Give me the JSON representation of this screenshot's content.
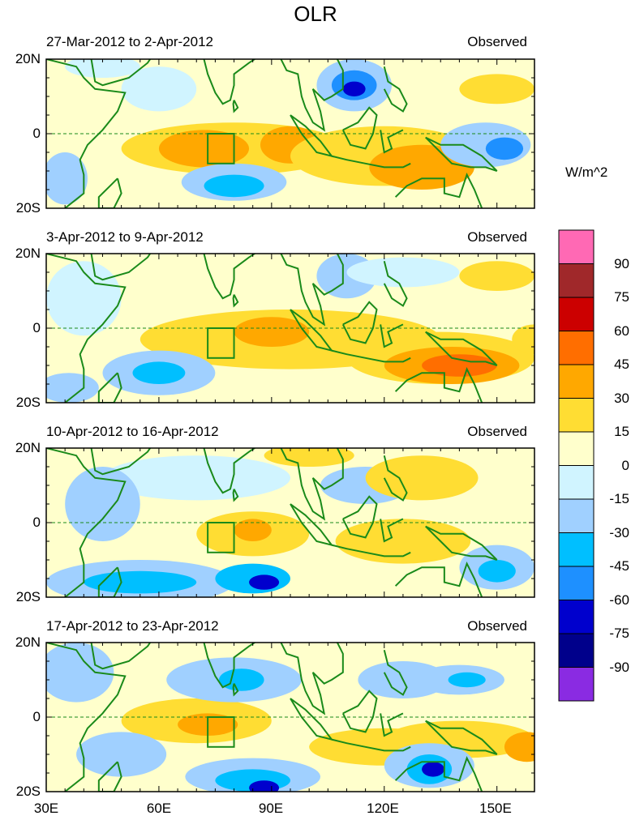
{
  "title": "OLR",
  "panels": [
    {
      "period": "27-Mar-2012 to 2-Apr-2012",
      "label": "Observed"
    },
    {
      "period": "3-Apr-2012 to 9-Apr-2012",
      "label": "Observed"
    },
    {
      "period": "10-Apr-2012 to 16-Apr-2012",
      "label": "Observed"
    },
    {
      "period": "17-Apr-2012 to 23-Apr-2012",
      "label": "Observed"
    }
  ],
  "y_ticks": [
    "20N",
    "0",
    "20S"
  ],
  "x_ticks": [
    "30E",
    "60E",
    "90E",
    "120E",
    "150E"
  ],
  "colorbar": {
    "units": "W/m^2",
    "labels": [
      "90",
      "75",
      "60",
      "45",
      "30",
      "15",
      "0",
      "-15",
      "-30",
      "-45",
      "-60",
      "-75",
      "-90"
    ],
    "colors": [
      "#ff69b4",
      "#a0282a",
      "#cc0000",
      "#ff6e00",
      "#ffa800",
      "#ffdd33",
      "#ffffcc",
      "#d0f4ff",
      "#a0d0ff",
      "#00bfff",
      "#1e90ff",
      "#0000cd",
      "#00008b",
      "#8a2be2"
    ]
  },
  "colors": {
    "coast": "#1a8a1a",
    "frame": "#000000"
  }
}
